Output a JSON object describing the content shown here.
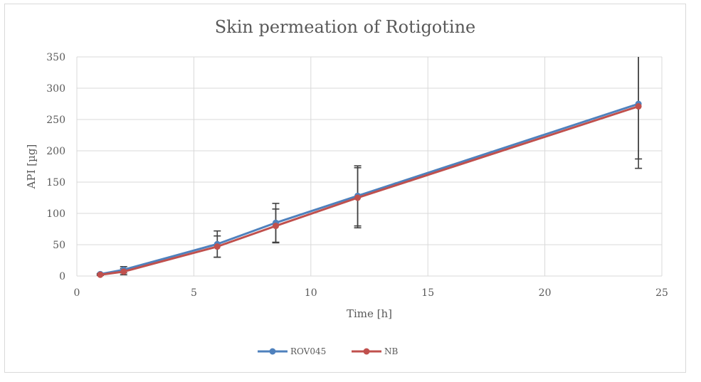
{
  "chart_data": {
    "type": "line",
    "title": "Skin permeation of Rotigotine",
    "xlabel": "Time [h]",
    "ylabel": "API [µg]",
    "xlim": [
      0,
      25
    ],
    "ylim": [
      0,
      350
    ],
    "xticks": [
      0,
      5,
      10,
      15,
      20,
      25
    ],
    "yticks": [
      0,
      50,
      100,
      150,
      200,
      250,
      300,
      350
    ],
    "grid": true,
    "legend_position": "bottom-center",
    "series": [
      {
        "name": "ROV045",
        "color": "#4f81bd",
        "x": [
          1,
          2,
          6,
          8.5,
          12,
          24
        ],
        "y": [
          3,
          10,
          51,
          85,
          128,
          275
        ],
        "error": [
          1,
          5,
          21,
          31,
          48,
          88
        ]
      },
      {
        "name": "NB",
        "color": "#c0504d",
        "x": [
          1,
          2,
          6,
          8.5,
          12,
          24
        ],
        "y": [
          2,
          7,
          47,
          80,
          125,
          271
        ],
        "error": [
          1,
          5,
          17,
          27,
          48,
          99
        ]
      }
    ],
    "error_bar_color": "#404040"
  }
}
